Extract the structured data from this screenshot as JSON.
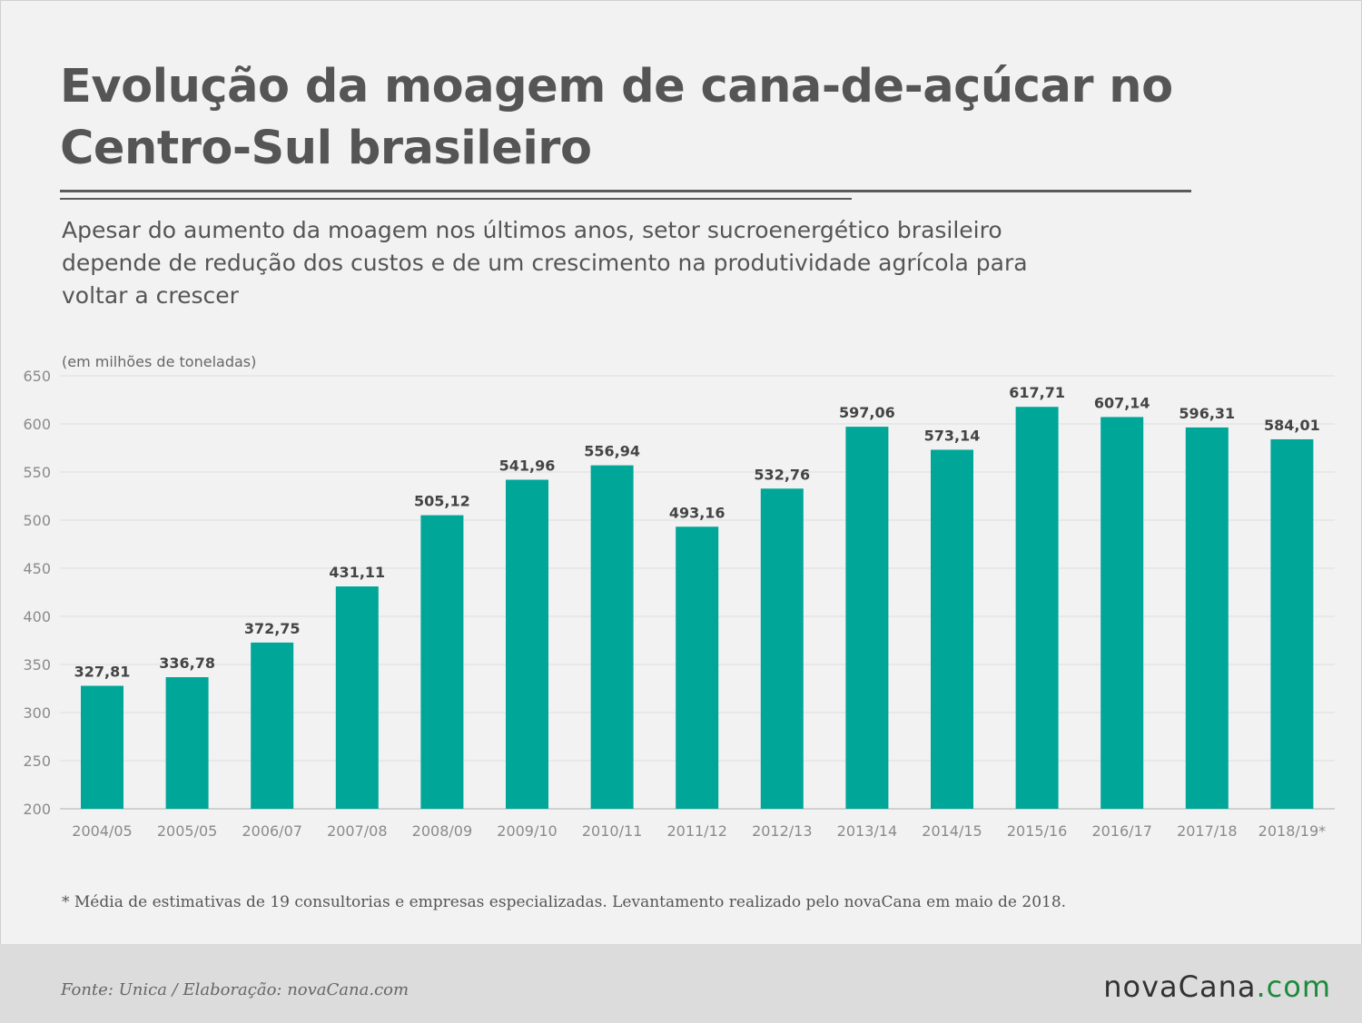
{
  "header": {
    "title": "Evolução da moagem de cana-de-açúcar no Centro-Sul brasileiro",
    "subtitle": "Apesar do aumento da moagem nos últimos anos, setor sucroenergético brasileiro depende de redução dos custos e de um crescimento na produtividade agrícola para voltar a crescer"
  },
  "chart_data": {
    "type": "bar",
    "title": "Evolução da moagem de cana-de-açúcar no Centro-Sul brasileiro",
    "unit_note": "(em milhões de toneladas)",
    "categories": [
      "2004/05",
      "2005/05",
      "2006/07",
      "2007/08",
      "2008/09",
      "2009/10",
      "2010/11",
      "2011/12",
      "2012/13",
      "2013/14",
      "2014/15",
      "2015/16",
      "2016/17",
      "2017/18",
      "2018/19*"
    ],
    "values": [
      327.81,
      336.78,
      372.75,
      431.11,
      505.12,
      541.96,
      556.94,
      493.16,
      532.76,
      597.06,
      573.14,
      617.71,
      607.14,
      596.31,
      584.01
    ],
    "value_labels": [
      "327,81",
      "336,78",
      "372,75",
      "431,11",
      "505,12",
      "541,96",
      "556,94",
      "493,16",
      "532,76",
      "597,06",
      "573,14",
      "617,71",
      "607,14",
      "596,31",
      "584,01"
    ],
    "ylim": [
      200,
      650
    ],
    "yticks": [
      200,
      250,
      300,
      350,
      400,
      450,
      500,
      550,
      600,
      650
    ],
    "grid": true,
    "bar_color": "#00a698"
  },
  "footnote": "* Média de estimativas de 19 consultorias e empresas especializadas. Levantamento realizado pelo novaCana em maio de 2018.",
  "footer": {
    "source": "Fonte: Unica / Elaboração: novaCana.com",
    "logo_part1": "novaCana",
    "logo_part2": ".com"
  }
}
